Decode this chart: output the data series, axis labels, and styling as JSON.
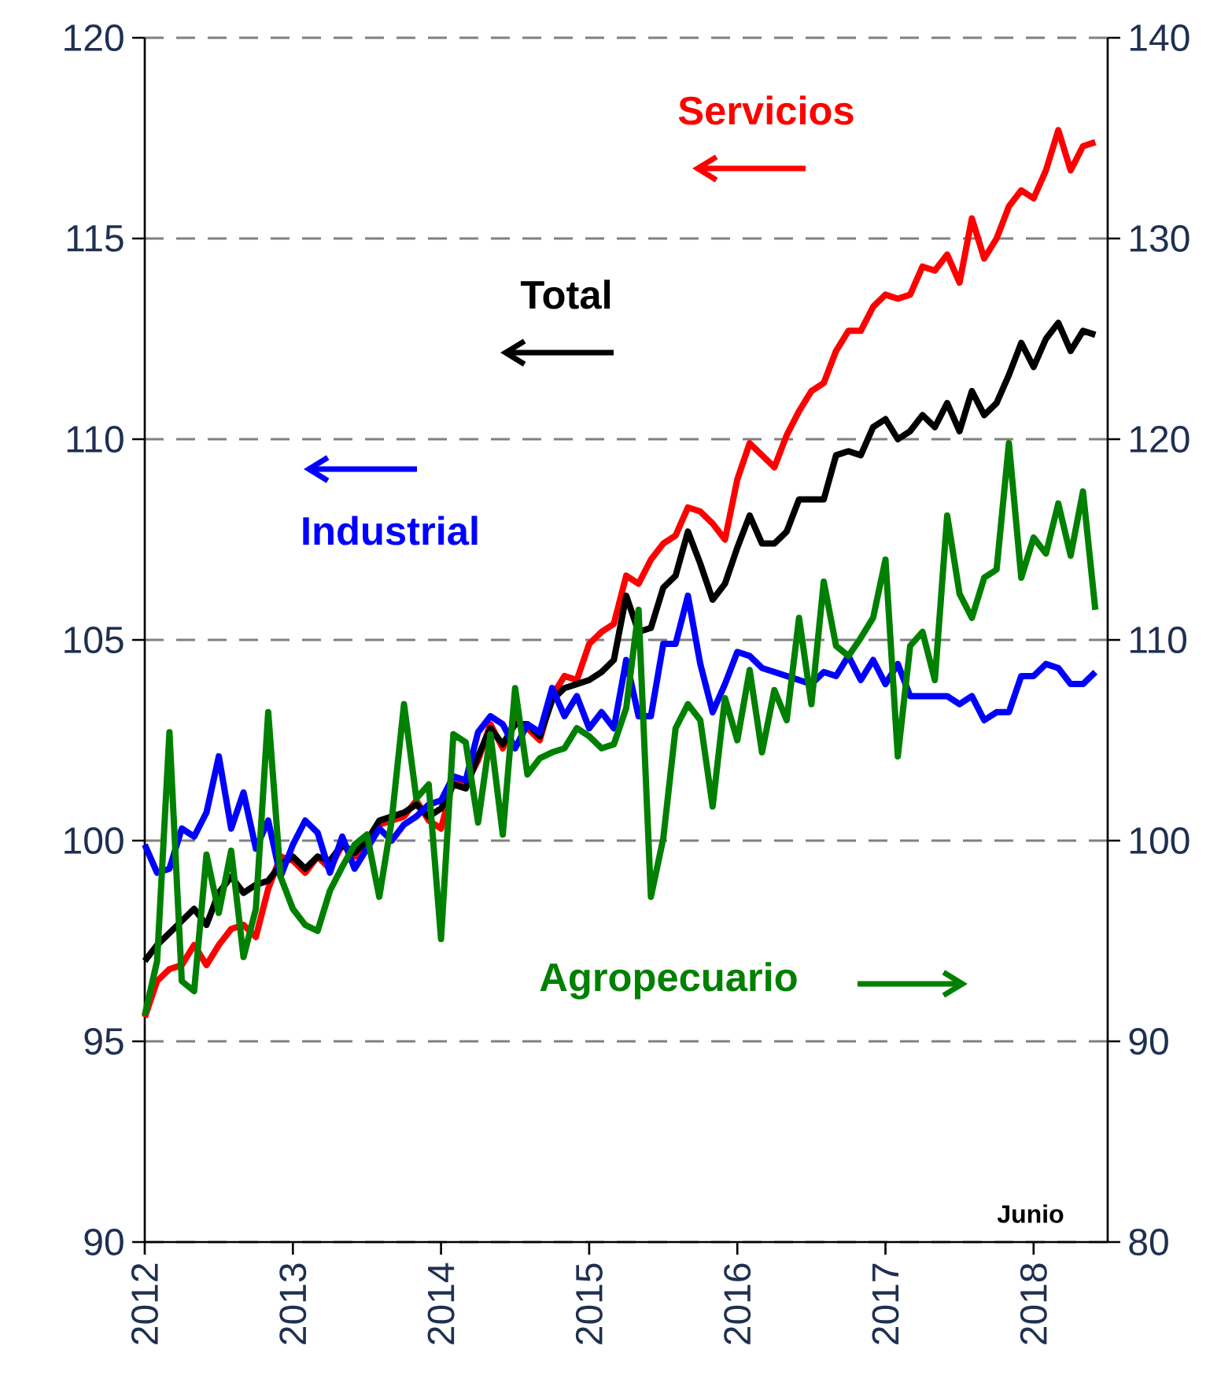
{
  "chart_data": {
    "type": "line",
    "x": [
      "2012-01",
      "2012-02",
      "2012-03",
      "2012-04",
      "2012-05",
      "2012-06",
      "2012-07",
      "2012-08",
      "2012-09",
      "2012-10",
      "2012-11",
      "2012-12",
      "2013-01",
      "2013-02",
      "2013-03",
      "2013-04",
      "2013-05",
      "2013-06",
      "2013-07",
      "2013-08",
      "2013-09",
      "2013-10",
      "2013-11",
      "2013-12",
      "2014-01",
      "2014-02",
      "2014-03",
      "2014-04",
      "2014-05",
      "2014-06",
      "2014-07",
      "2014-08",
      "2014-09",
      "2014-10",
      "2014-11",
      "2014-12",
      "2015-01",
      "2015-02",
      "2015-03",
      "2015-04",
      "2015-05",
      "2015-06",
      "2015-07",
      "2015-08",
      "2015-09",
      "2015-10",
      "2015-11",
      "2015-12",
      "2016-01",
      "2016-02",
      "2016-03",
      "2016-04",
      "2016-05",
      "2016-06",
      "2016-07",
      "2016-08",
      "2016-09",
      "2016-10",
      "2016-11",
      "2016-12",
      "2017-01",
      "2017-02",
      "2017-03",
      "2017-04",
      "2017-05",
      "2017-06",
      "2017-07",
      "2017-08",
      "2017-09",
      "2017-10",
      "2017-11",
      "2017-12",
      "2018-01",
      "2018-02",
      "2018-03",
      "2018-04",
      "2018-05",
      "2018-06"
    ],
    "series": [
      {
        "name": "Servicios",
        "color": "#ff0000",
        "values": [
          95.6,
          96.5,
          96.8,
          96.9,
          97.4,
          96.9,
          97.4,
          97.8,
          97.9,
          97.6,
          98.8,
          99.6,
          99.5,
          99.2,
          99.6,
          99.3,
          99.9,
          99.6,
          99.8,
          100.4,
          100.5,
          100.6,
          101.0,
          100.5,
          100.3,
          101.5,
          101.4,
          102.0,
          102.9,
          102.3,
          103.0,
          102.8,
          102.5,
          103.6,
          104.1,
          104.0,
          104.9,
          105.2,
          105.4,
          106.6,
          106.4,
          107.0,
          107.4,
          107.6,
          108.3,
          108.2,
          107.9,
          107.5,
          109.0,
          109.9,
          109.6,
          109.3,
          110.1,
          110.7,
          111.2,
          111.4,
          112.2,
          112.7,
          112.7,
          113.3,
          113.6,
          113.5,
          113.6,
          114.3,
          114.2,
          114.6,
          113.9,
          115.5,
          114.5,
          115.0,
          115.8,
          116.2,
          116.0,
          116.7,
          117.7,
          116.7,
          117.3,
          117.4
        ]
      },
      {
        "name": "Total",
        "color": "#000000",
        "values": [
          97.0,
          97.4,
          97.7,
          98.0,
          98.3,
          97.9,
          98.7,
          99.1,
          98.7,
          98.9,
          99.0,
          99.4,
          99.6,
          99.3,
          99.6,
          99.5,
          99.9,
          99.7,
          100.0,
          100.5,
          100.6,
          100.7,
          100.9,
          100.6,
          100.8,
          101.4,
          101.3,
          102.1,
          102.8,
          102.4,
          102.9,
          102.9,
          102.6,
          103.5,
          103.8,
          103.9,
          104.0,
          104.2,
          104.5,
          106.1,
          105.2,
          105.3,
          106.3,
          106.6,
          107.7,
          106.9,
          106.0,
          106.4,
          107.3,
          108.1,
          107.4,
          107.4,
          107.7,
          108.5,
          108.5,
          108.5,
          109.6,
          109.7,
          109.6,
          110.3,
          110.5,
          110.0,
          110.2,
          110.6,
          110.3,
          110.9,
          110.2,
          111.2,
          110.6,
          110.9,
          111.6,
          112.4,
          111.8,
          112.5,
          112.9,
          112.2,
          112.7,
          112.6
        ]
      },
      {
        "name": "Industrial",
        "color": "#0000ff",
        "values": [
          99.9,
          99.2,
          99.3,
          100.3,
          100.1,
          100.7,
          102.1,
          100.3,
          101.2,
          99.8,
          100.5,
          99.1,
          99.9,
          100.5,
          100.2,
          99.2,
          100.1,
          99.3,
          99.8,
          100.3,
          100.0,
          100.4,
          100.6,
          100.9,
          101.0,
          101.6,
          101.5,
          102.7,
          103.1,
          102.9,
          102.3,
          102.9,
          102.7,
          103.8,
          103.1,
          103.6,
          102.8,
          103.2,
          102.8,
          104.5,
          103.1,
          103.1,
          104.9,
          104.9,
          106.1,
          104.4,
          103.2,
          103.9,
          104.7,
          104.6,
          104.3,
          104.2,
          104.1,
          104.0,
          103.9,
          104.2,
          104.1,
          104.6,
          104.0,
          104.5,
          103.9,
          104.4,
          103.6,
          103.6,
          103.6,
          103.6,
          103.4,
          103.6,
          103.0,
          103.2,
          103.2,
          104.1,
          104.1,
          104.4,
          104.3,
          103.9,
          103.9,
          104.2
        ]
      },
      {
        "name": "Agropecuario",
        "color": "#008000",
        "axis": "y2",
        "values": [
          91.3,
          94.0,
          105.4,
          93.0,
          92.5,
          99.3,
          96.4,
          99.5,
          94.2,
          96.6,
          106.4,
          98.2,
          96.6,
          95.8,
          95.5,
          97.5,
          98.7,
          99.8,
          100.3,
          97.2,
          101.0,
          106.8,
          102.1,
          102.8,
          95.1,
          105.3,
          104.9,
          100.9,
          105.3,
          100.3,
          107.6,
          103.3,
          104.1,
          104.4,
          104.6,
          105.6,
          105.2,
          104.6,
          104.8,
          106.6,
          111.5,
          97.2,
          100.1,
          105.6,
          106.8,
          106.0,
          101.7,
          107.1,
          105.0,
          108.5,
          104.4,
          107.5,
          106.0,
          111.1,
          106.8,
          112.9,
          109.7,
          109.2,
          110.1,
          111.1,
          114.0,
          104.2,
          109.7,
          110.4,
          108.0,
          116.2,
          112.3,
          111.1,
          113.1,
          113.5,
          119.8,
          113.1,
          115.1,
          114.3,
          116.8,
          114.2,
          117.4,
          111.5
        ]
      }
    ],
    "xlim": [
      "2012-01",
      "2018-07"
    ],
    "xticks": [
      "2012",
      "2013",
      "2014",
      "2015",
      "2016",
      "2017",
      "2018"
    ],
    "ylim": [
      90,
      120
    ],
    "yticks": [
      90,
      95,
      100,
      105,
      110,
      115,
      120
    ],
    "y2lim": [
      80,
      140
    ],
    "y2ticks": [
      80,
      90,
      100,
      110,
      120,
      130,
      140
    ],
    "grid": "y",
    "marker": "none",
    "line_style": "solid",
    "annotations": [
      "Junio"
    ]
  }
}
